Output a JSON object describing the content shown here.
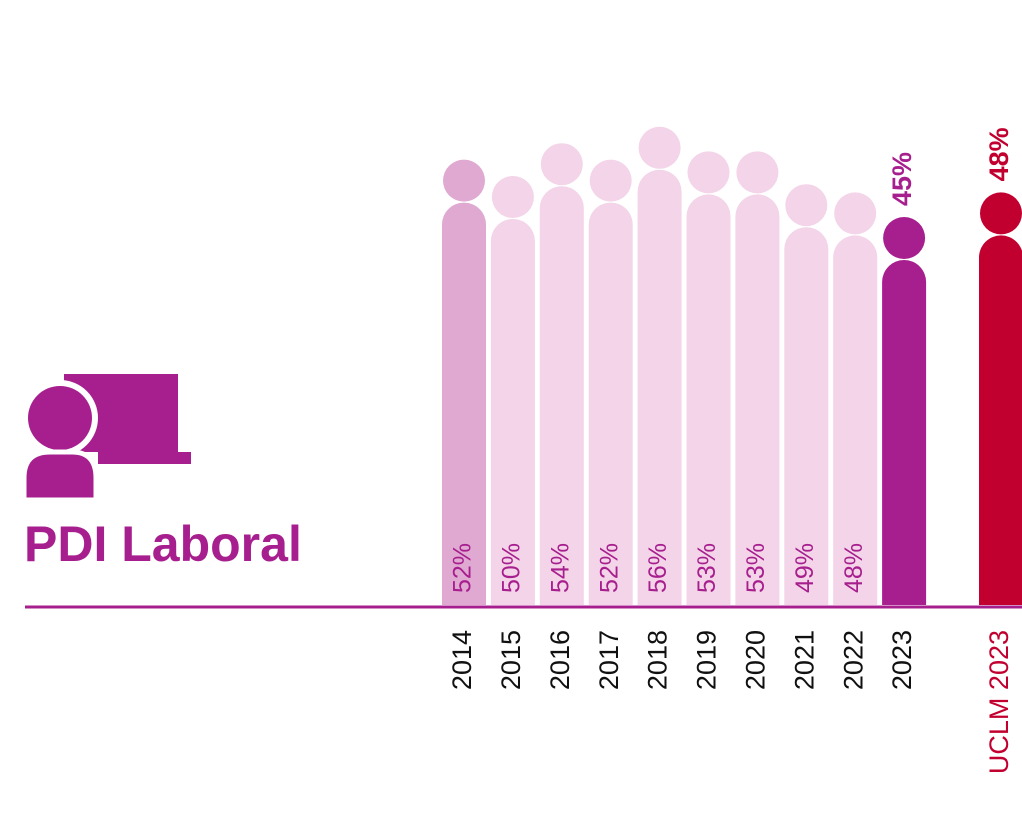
{
  "chart_data": {
    "type": "bar",
    "title": "PDI Laboral",
    "categories": [
      "2014",
      "2015",
      "2016",
      "2017",
      "2018",
      "2019",
      "2020",
      "2021",
      "2022",
      "2023",
      "UCLM 2023"
    ],
    "values": [
      52,
      50,
      54,
      52,
      56,
      53,
      53,
      49,
      48,
      45,
      48
    ],
    "value_labels": [
      "52%",
      "50%",
      "54%",
      "52%",
      "56%",
      "53%",
      "53%",
      "49%",
      "48%",
      "45%",
      "48%"
    ],
    "colors": [
      "#e0a9d1",
      "#f3d4e8",
      "#f3d4e8",
      "#f3d4e8",
      "#f3d4e8",
      "#f3d4e8",
      "#f3d4e8",
      "#f3d4e8",
      "#f3d4e8",
      "#a71f8e",
      "#c2002f"
    ]
  }
}
